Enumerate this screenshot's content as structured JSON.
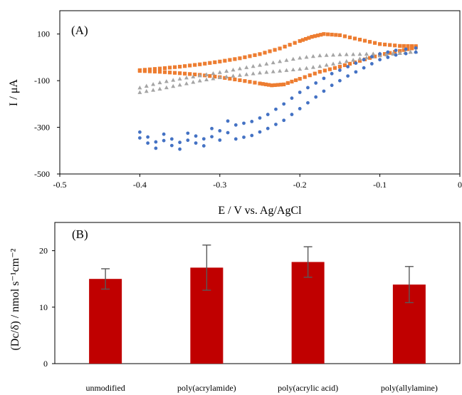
{
  "chart_data": [
    {
      "type": "scatter",
      "panel_label": "(A)",
      "xlabel": "E / V vs. Ag/AgCl",
      "ylabel": "I / μA",
      "xlim": [
        -0.5,
        0
      ],
      "ylim": [
        -500,
        200
      ],
      "xticks": [
        -0.5,
        -0.4,
        -0.3,
        -0.2,
        -0.1,
        0
      ],
      "xtick_labels": [
        "-0.5",
        "-0.4",
        "-0.3",
        "-0.2",
        "-0.1",
        "0"
      ],
      "yticks": [
        -500,
        -300,
        -100,
        100
      ],
      "ytick_labels": [
        "-500",
        "-300",
        "-100",
        "100"
      ],
      "grid": false,
      "legend": "none",
      "series": [
        {
          "color": "#ED7D31",
          "marker": "square",
          "upper_branch": {
            "x": [
              -0.4,
              -0.375,
              -0.35,
              -0.325,
              -0.3,
              -0.275,
              -0.25,
              -0.225,
              -0.2,
              -0.185,
              -0.17,
              -0.15,
              -0.125,
              -0.1,
              -0.075,
              -0.055
            ],
            "y": [
              -55,
              -48,
              -40,
              -30,
              -18,
              -4,
              14,
              38,
              70,
              88,
              100,
              95,
              76,
              57,
              49,
              48
            ]
          },
          "lower_branch": {
            "x": [
              -0.4,
              -0.375,
              -0.35,
              -0.325,
              -0.3,
              -0.275,
              -0.25,
              -0.235,
              -0.22,
              -0.2,
              -0.175,
              -0.15,
              -0.125,
              -0.1,
              -0.075,
              -0.055
            ],
            "y": [
              -58,
              -62,
              -68,
              -75,
              -85,
              -98,
              -112,
              -120,
              -116,
              -92,
              -62,
              -40,
              -15,
              10,
              28,
              42
            ]
          }
        },
        {
          "color": "#A5A5A5",
          "marker": "triangle",
          "upper_branch": {
            "x": [
              -0.4,
              -0.375,
              -0.35,
              -0.325,
              -0.3,
              -0.275,
              -0.25,
              -0.225,
              -0.2,
              -0.175,
              -0.15,
              -0.125,
              -0.1,
              -0.075,
              -0.055
            ],
            "y": [
              -130,
              -108,
              -92,
              -78,
              -64,
              -48,
              -33,
              -17,
              -2,
              8,
              12,
              14,
              16,
              20,
              24
            ]
          },
          "lower_branch": {
            "x": [
              -0.4,
              -0.375,
              -0.35,
              -0.325,
              -0.3,
              -0.275,
              -0.25,
              -0.225,
              -0.2,
              -0.175,
              -0.15,
              -0.125,
              -0.1,
              -0.075,
              -0.055
            ],
            "y": [
              -150,
              -135,
              -118,
              -100,
              -86,
              -76,
              -66,
              -58,
              -50,
              -38,
              -22,
              -6,
              8,
              18,
              26
            ]
          }
        },
        {
          "color": "#4472C4",
          "marker": "circle",
          "upper_branch": {
            "x": [
              -0.4,
              -0.38,
              -0.36,
              -0.34,
              -0.32,
              -0.3,
              -0.28,
              -0.26,
              -0.24,
              -0.22,
              -0.2,
              -0.18,
              -0.16,
              -0.14,
              -0.12,
              -0.1,
              -0.08,
              -0.055
            ],
            "y": [
              -345,
              -348,
              -350,
              -340,
              -325,
              -305,
              -290,
              -275,
              -245,
              -200,
              -150,
              -110,
              -70,
              -40,
              -10,
              15,
              30,
              40
            ]
          },
          "lower_branch": {
            "x": [
              -0.4,
              -0.38,
              -0.36,
              -0.34,
              -0.32,
              -0.3,
              -0.28,
              -0.26,
              -0.24,
              -0.22,
              -0.2,
              -0.18,
              -0.16,
              -0.14,
              -0.12,
              -0.1,
              -0.08,
              -0.055
            ],
            "y": [
              -370,
              -375,
              -378,
              -370,
              -355,
              -345,
              -350,
              -335,
              -305,
              -270,
              -220,
              -170,
              -120,
              -80,
              -45,
              -10,
              10,
              22
            ]
          }
        }
      ]
    },
    {
      "type": "bar",
      "panel_label": "(B)",
      "ylabel": "(Dc/δ) / nmol s⁻¹cm⁻²",
      "categories": [
        "unmodified",
        "poly(acrylamide)",
        "poly(acrylic acid)",
        "poly(allylamine)"
      ],
      "values": [
        15,
        17,
        18,
        14
      ],
      "errors": [
        1.8,
        4.0,
        2.7,
        3.2
      ],
      "ylim": [
        0,
        25
      ],
      "yticks": [
        0,
        10,
        20
      ],
      "ytick_labels": [
        "0",
        "10",
        "20"
      ],
      "bar_color": "#C00000",
      "error_color": "#595959",
      "grid": false,
      "legend": "none"
    }
  ]
}
